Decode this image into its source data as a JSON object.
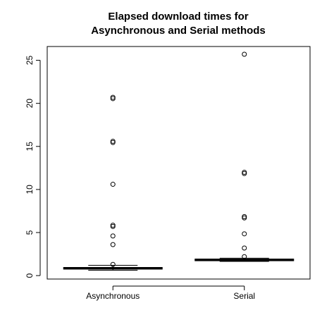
{
  "chart_data": {
    "type": "boxplot",
    "title_lines": [
      "Elapsed download times for",
      "Asynchronous and Serial methods"
    ],
    "xlabel": "",
    "ylabel": "",
    "categories": [
      "Asynchronous",
      "Serial"
    ],
    "ylim": [
      -0.4,
      26.6
    ],
    "y_ticks": [
      0,
      5,
      10,
      15,
      20,
      25
    ],
    "grid": false,
    "legend": "none",
    "boxes": [
      {
        "name": "Asynchronous",
        "whisker_low": 0.62,
        "q1": 0.75,
        "median": 0.85,
        "q3": 0.95,
        "whisker_high": 1.2,
        "outliers": [
          1.3,
          3.6,
          4.6,
          5.7,
          5.85,
          10.6,
          15.45,
          15.6,
          20.55,
          20.7
        ]
      },
      {
        "name": "Serial",
        "whisker_low": 1.65,
        "q1": 1.72,
        "median": 1.83,
        "q3": 1.92,
        "whisker_high": 2.02,
        "outliers": [
          2.2,
          3.2,
          4.85,
          6.7,
          6.85,
          11.85,
          12.0,
          25.7
        ]
      }
    ]
  }
}
